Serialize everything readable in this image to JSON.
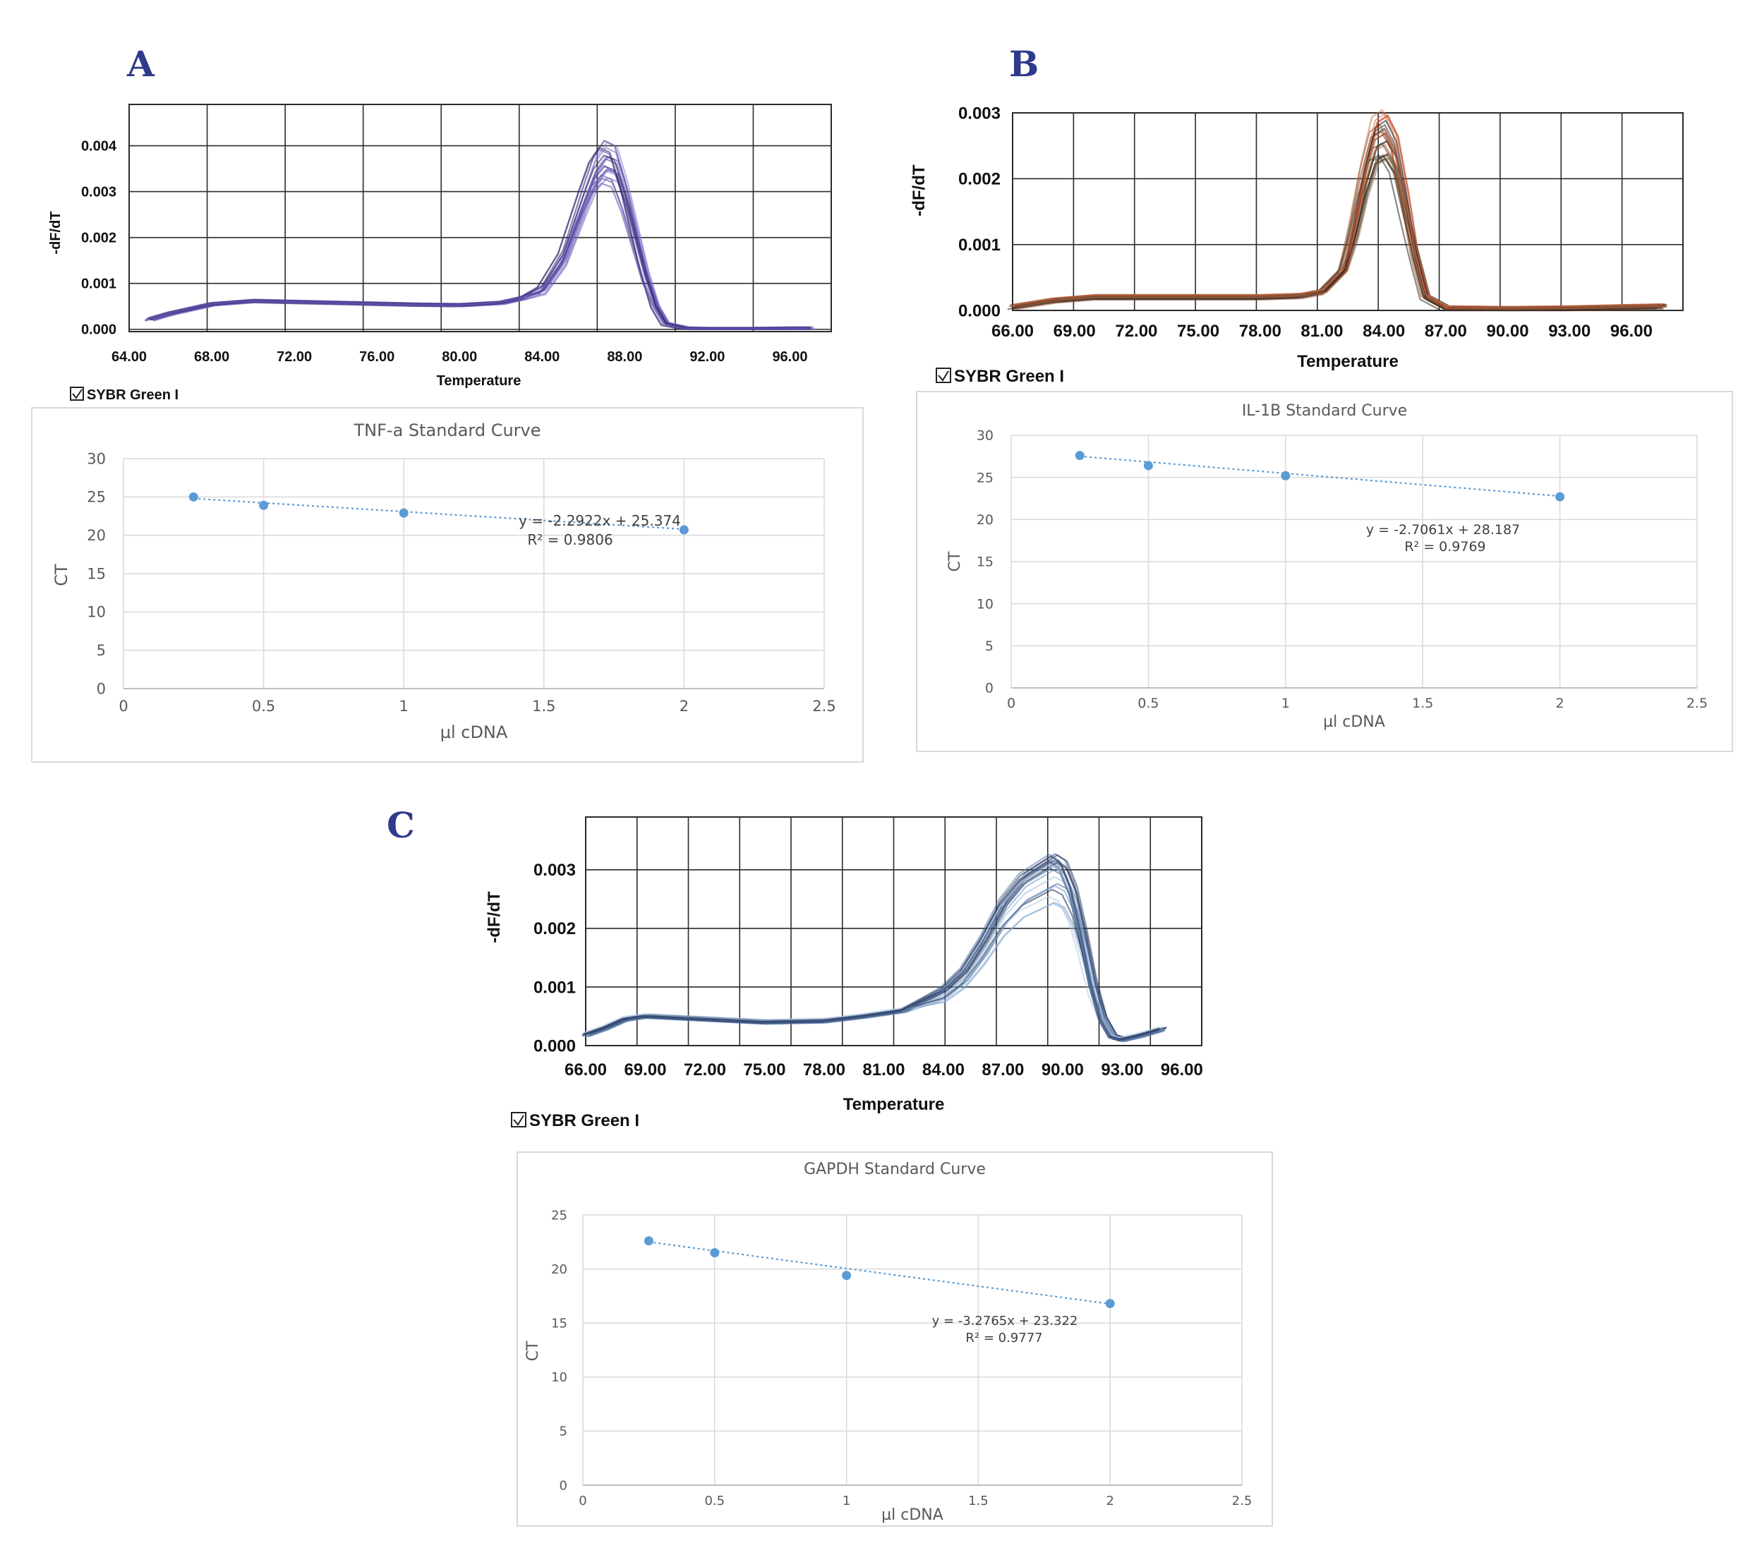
{
  "panels": [
    {
      "letter": "A",
      "legend": "SYBR Green I",
      "melt": {
        "xlabel": "Temperature",
        "ylabel": "-dF/dT",
        "xticks": [
          "64.00",
          "68.00",
          "72.00",
          "76.00",
          "80.00",
          "84.00",
          "88.00",
          "92.00",
          "96.00"
        ],
        "yticks": [
          "0.000",
          "0.001",
          "0.002",
          "0.003",
          "0.004"
        ]
      },
      "standard": {
        "title": "TNF-a  Standard  Curve",
        "xlabel": "µl cDNA",
        "ylabel": "CT",
        "xticks": [
          "0",
          "0.5",
          "1",
          "1.5",
          "2",
          "2.5"
        ],
        "yticks": [
          "0",
          "5",
          "10",
          "15",
          "20",
          "25",
          "30"
        ],
        "equation": "y = -2.2922x + 25.374",
        "r2": "R² = 0.9806"
      }
    },
    {
      "letter": "B",
      "legend": "SYBR Green I",
      "melt": {
        "xlabel": "Temperature",
        "ylabel": "-dF/dT",
        "xticks": [
          "66.00",
          "69.00",
          "72.00",
          "75.00",
          "78.00",
          "81.00",
          "84.00",
          "87.00",
          "90.00",
          "93.00",
          "96.00"
        ],
        "yticks": [
          "0.000",
          "0.001",
          "0.002",
          "0.003"
        ]
      },
      "standard": {
        "title": "IL-1B  Standard  Curve",
        "xlabel": "µl cDNA",
        "ylabel": "CT",
        "xticks": [
          "0",
          "0.5",
          "1",
          "1.5",
          "2",
          "2.5"
        ],
        "yticks": [
          "0",
          "5",
          "10",
          "15",
          "20",
          "25",
          "30"
        ],
        "equation": "y = -2.7061x + 28.187",
        "r2": "R² = 0.9769"
      }
    },
    {
      "letter": "C",
      "legend": "SYBR Green I",
      "melt": {
        "xlabel": "Temperature",
        "ylabel": "-dF/dT",
        "xticks": [
          "66.00",
          "69.00",
          "72.00",
          "75.00",
          "78.00",
          "81.00",
          "84.00",
          "87.00",
          "90.00",
          "93.00",
          "96.00"
        ],
        "yticks": [
          "0.000",
          "0.001",
          "0.002",
          "0.003"
        ]
      },
      "standard": {
        "title": "GAPDH  Standard  Curve",
        "xlabel": "µl cDNA",
        "ylabel": "CT",
        "xticks": [
          "0",
          "0.5",
          "1",
          "1.5",
          "2",
          "2.5"
        ],
        "yticks": [
          "0",
          "5",
          "10",
          "15",
          "20",
          "25"
        ],
        "equation": "y = -3.2765x + 23.322",
        "r2": "R² = 0.9777"
      }
    }
  ],
  "chart_data": [
    {
      "type": "line",
      "panel": "A",
      "xlabel": "Temperature",
      "ylabel": "-dF/dT",
      "xlim": [
        64,
        98
      ],
      "ylim": [
        -5e-05,
        0.0049
      ],
      "grid": true,
      "color": "#6a4fb0",
      "x": [
        65,
        66,
        68,
        70,
        72,
        74,
        76,
        78,
        80,
        82,
        83,
        84,
        85,
        86,
        86.5,
        87,
        87.5,
        88,
        88.5,
        89,
        89.5,
        90,
        91,
        92,
        94,
        96,
        97
      ],
      "y": [
        0.00022,
        0.00035,
        0.00055,
        0.00062,
        0.0006,
        0.00058,
        0.00056,
        0.00054,
        0.00053,
        0.00058,
        0.00068,
        0.0009,
        0.0016,
        0.0029,
        0.0035,
        0.0038,
        0.0037,
        0.003,
        0.0021,
        0.0012,
        0.0005,
        0.00012,
        2e-05,
        1e-05,
        1e-05,
        2e-05,
        2e-05
      ]
    },
    {
      "type": "line",
      "panel": "B",
      "xlabel": "Temperature",
      "ylabel": "-dF/dT",
      "xlim": [
        66,
        98.5
      ],
      "ylim": [
        0,
        0.003
      ],
      "grid": true,
      "color": "#3a2a1e",
      "x": [
        66,
        68,
        70,
        72,
        75,
        78,
        80,
        81,
        82,
        82.5,
        83,
        83.5,
        84,
        84.5,
        85,
        85.5,
        86,
        87,
        90,
        93,
        96,
        97.5
      ],
      "y": [
        5e-05,
        0.00015,
        0.0002,
        0.0002,
        0.0002,
        0.0002,
        0.00022,
        0.00028,
        0.0006,
        0.0013,
        0.0021,
        0.0027,
        0.0028,
        0.0025,
        0.0017,
        0.0008,
        0.0002,
        3e-05,
        2e-05,
        3e-05,
        5e-05,
        6e-05
      ]
    },
    {
      "type": "line",
      "panel": "C",
      "xlabel": "Temperature",
      "ylabel": "-dF/dT",
      "xlim": [
        66,
        97
      ],
      "ylim": [
        0,
        0.0039
      ],
      "grid": true,
      "color": "#2f4a7c",
      "x": [
        66,
        67,
        68,
        69,
        72,
        75,
        78,
        80,
        82,
        84,
        85,
        86,
        87,
        88,
        89,
        89.5,
        90,
        90.5,
        91,
        91.5,
        92,
        92.5,
        93,
        94,
        95
      ],
      "y": [
        0.00018,
        0.0003,
        0.00045,
        0.0005,
        0.00045,
        0.0004,
        0.00042,
        0.0005,
        0.0006,
        0.0009,
        0.0012,
        0.0017,
        0.0023,
        0.0027,
        0.0029,
        0.003,
        0.0029,
        0.0025,
        0.0018,
        0.001,
        0.00045,
        0.00015,
        0.0001,
        0.00018,
        0.00028
      ]
    },
    {
      "type": "scatter",
      "panel": "A",
      "title": "TNF-a  Standard  Curve",
      "xlabel": "µl cDNA",
      "ylabel": "CT",
      "xlim": [
        0,
        2.5
      ],
      "ylim": [
        0,
        30
      ],
      "grid": true,
      "x": [
        0.25,
        0.5,
        1,
        2
      ],
      "y": [
        25.0,
        23.9,
        22.9,
        20.7
      ],
      "trendline": {
        "slope": -2.2922,
        "intercept": 25.374
      }
    },
    {
      "type": "scatter",
      "panel": "B",
      "title": "IL-1B  Standard  Curve",
      "xlabel": "µl cDNA",
      "ylabel": "CT",
      "xlim": [
        0,
        2.5
      ],
      "ylim": [
        0,
        30
      ],
      "grid": true,
      "x": [
        0.25,
        0.5,
        1,
        2
      ],
      "y": [
        27.6,
        26.4,
        25.2,
        22.7
      ],
      "trendline": {
        "slope": -2.7061,
        "intercept": 28.187
      }
    },
    {
      "type": "scatter",
      "panel": "C",
      "title": "GAPDH  Standard  Curve",
      "xlabel": "µl cDNA",
      "ylabel": "CT",
      "xlim": [
        0,
        2.5
      ],
      "ylim": [
        0,
        25
      ],
      "grid": true,
      "x": [
        0.25,
        0.5,
        1,
        2
      ],
      "y": [
        22.6,
        21.5,
        19.4,
        16.8
      ],
      "trendline": {
        "slope": -3.2765,
        "intercept": 23.322
      }
    }
  ]
}
